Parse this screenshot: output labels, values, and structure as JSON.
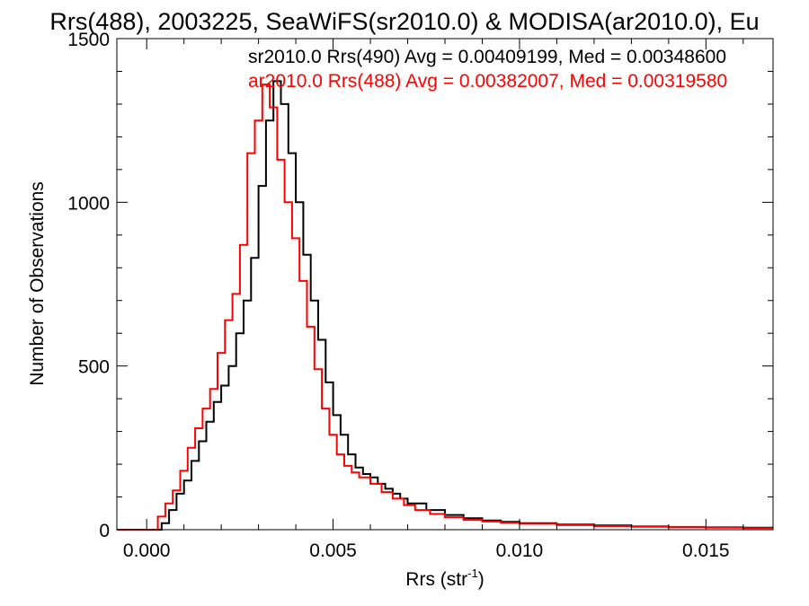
{
  "chart_data": {
    "type": "line",
    "title": "Rrs(488), 2003225, SeaWiFS(sr2010.0) & MODISA(ar2010.0), Eu",
    "xlabel_main": "Rrs (str",
    "xlabel_sup": "-1",
    "xlabel_close": ")",
    "ylabel": "Number of Observations",
    "xlim": [
      -0.0008,
      0.0168
    ],
    "ylim": [
      0,
      1500
    ],
    "x_ticks": [
      {
        "value": 0.0,
        "label": "0.000"
      },
      {
        "value": 0.005,
        "label": "0.005"
      },
      {
        "value": 0.01,
        "label": "0.010"
      },
      {
        "value": 0.015,
        "label": "0.015"
      }
    ],
    "y_ticks": [
      {
        "value": 0,
        "label": "0"
      },
      {
        "value": 500,
        "label": "500"
      },
      {
        "value": 1000,
        "label": "1000"
      },
      {
        "value": 1500,
        "label": "1500"
      }
    ],
    "annotations": [
      {
        "text": "sr2010.0 Rrs(490) Avg = 0.00409199, Med = 0.00348600",
        "color": "#000000"
      },
      {
        "text": "ar2010.0 Rrs(488) Avg = 0.00382007, Med = 0.00319580",
        "color": "#ff0000"
      }
    ],
    "series": [
      {
        "color": "#000000",
        "points": [
          [
            -0.0008,
            0
          ],
          [
            0.0002,
            0
          ],
          [
            0.0004,
            20
          ],
          [
            0.0006,
            60
          ],
          [
            0.0008,
            110
          ],
          [
            0.001,
            150
          ],
          [
            0.0012,
            210
          ],
          [
            0.0014,
            270
          ],
          [
            0.0016,
            330
          ],
          [
            0.0018,
            390
          ],
          [
            0.002,
            440
          ],
          [
            0.0022,
            500
          ],
          [
            0.0024,
            600
          ],
          [
            0.0026,
            700
          ],
          [
            0.0028,
            830
          ],
          [
            0.003,
            1050
          ],
          [
            0.0032,
            1250
          ],
          [
            0.0034,
            1370
          ],
          [
            0.0036,
            1300
          ],
          [
            0.0038,
            1150
          ],
          [
            0.004,
            1000
          ],
          [
            0.0042,
            840
          ],
          [
            0.0044,
            700
          ],
          [
            0.0046,
            580
          ],
          [
            0.0048,
            450
          ],
          [
            0.005,
            350
          ],
          [
            0.0052,
            290
          ],
          [
            0.0054,
            230
          ],
          [
            0.0056,
            190
          ],
          [
            0.0058,
            170
          ],
          [
            0.006,
            160
          ],
          [
            0.0062,
            140
          ],
          [
            0.0064,
            125
          ],
          [
            0.0066,
            110
          ],
          [
            0.0068,
            95
          ],
          [
            0.007,
            80
          ],
          [
            0.0075,
            60
          ],
          [
            0.008,
            45
          ],
          [
            0.0085,
            35
          ],
          [
            0.009,
            28
          ],
          [
            0.0095,
            24
          ],
          [
            0.01,
            20
          ],
          [
            0.011,
            16
          ],
          [
            0.012,
            13
          ],
          [
            0.013,
            10
          ],
          [
            0.014,
            8
          ],
          [
            0.015,
            7
          ],
          [
            0.016,
            6
          ],
          [
            0.0168,
            6
          ]
        ]
      },
      {
        "color": "#ff0000",
        "points": [
          [
            -0.0008,
            0
          ],
          [
            0.0,
            0
          ],
          [
            0.0003,
            40
          ],
          [
            0.0005,
            80
          ],
          [
            0.0007,
            120
          ],
          [
            0.0009,
            180
          ],
          [
            0.0011,
            250
          ],
          [
            0.0013,
            310
          ],
          [
            0.0015,
            370
          ],
          [
            0.0017,
            430
          ],
          [
            0.0019,
            540
          ],
          [
            0.0021,
            640
          ],
          [
            0.0023,
            720
          ],
          [
            0.0025,
            870
          ],
          [
            0.0027,
            1150
          ],
          [
            0.0029,
            1250
          ],
          [
            0.0031,
            1360
          ],
          [
            0.0033,
            1290
          ],
          [
            0.0035,
            1130
          ],
          [
            0.0037,
            1000
          ],
          [
            0.0039,
            890
          ],
          [
            0.0041,
            760
          ],
          [
            0.0043,
            620
          ],
          [
            0.0045,
            490
          ],
          [
            0.0047,
            370
          ],
          [
            0.0049,
            290
          ],
          [
            0.0051,
            230
          ],
          [
            0.0053,
            195
          ],
          [
            0.0055,
            175
          ],
          [
            0.0057,
            160
          ],
          [
            0.006,
            140
          ],
          [
            0.0063,
            115
          ],
          [
            0.0066,
            95
          ],
          [
            0.0069,
            75
          ],
          [
            0.0072,
            60
          ],
          [
            0.0076,
            48
          ],
          [
            0.008,
            38
          ],
          [
            0.0085,
            30
          ],
          [
            0.009,
            25
          ],
          [
            0.0095,
            21
          ],
          [
            0.01,
            18
          ],
          [
            0.011,
            14
          ],
          [
            0.012,
            11
          ],
          [
            0.013,
            9
          ],
          [
            0.014,
            7
          ],
          [
            0.015,
            6
          ],
          [
            0.016,
            5
          ],
          [
            0.0168,
            5
          ]
        ]
      }
    ]
  }
}
